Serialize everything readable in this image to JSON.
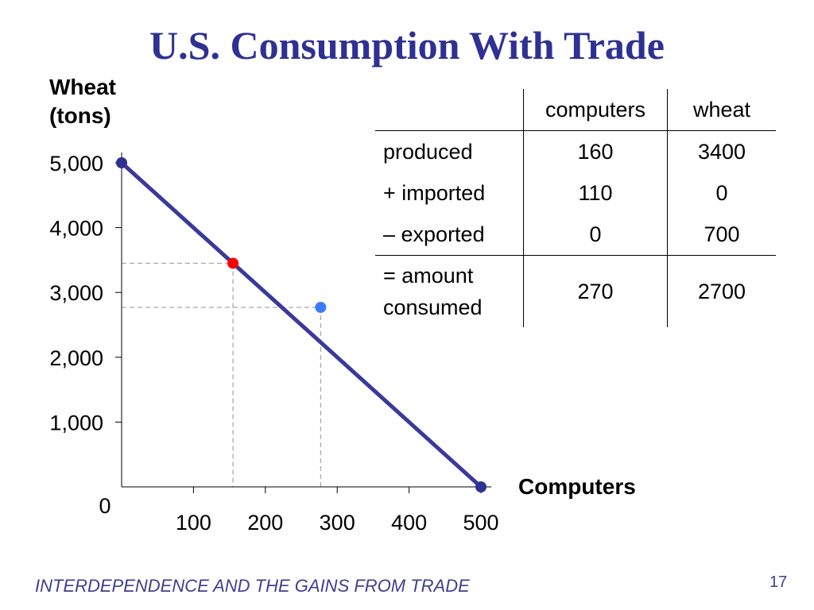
{
  "slide": {
    "title": "U.S. Consumption With Trade",
    "footer": "INTERDEPENDENCE AND THE GAINS FROM TRADE",
    "page_number": "17"
  },
  "table": {
    "headers": [
      "",
      "computers",
      "wheat"
    ],
    "rows": [
      {
        "label": "produced",
        "computers": "160",
        "wheat": "3400"
      },
      {
        "label": "+ imported",
        "computers": "110",
        "wheat": "0"
      },
      {
        "label": "– exported",
        "computers": "0",
        "wheat": "700"
      },
      {
        "label": "= amount consumed",
        "computers": "270",
        "wheat": "2700"
      }
    ]
  },
  "chart_data": {
    "type": "line",
    "ylabel_line1": "Wheat",
    "ylabel_line2": "(tons)",
    "xlabel": "Computers",
    "origin_label": "0",
    "xlim": [
      0,
      500
    ],
    "ylim": [
      0,
      5000
    ],
    "x_ticks": [
      100,
      200,
      300,
      400,
      500
    ],
    "x_tick_labels": [
      "100",
      "200",
      "300",
      "400",
      "500"
    ],
    "y_ticks": [
      1000,
      2000,
      3000,
      4000,
      5000
    ],
    "y_tick_labels": [
      "1,000",
      "2,000",
      "3,000",
      "4,000",
      "5,000"
    ],
    "line": {
      "points": [
        [
          0,
          5000
        ],
        [
          500,
          0
        ]
      ],
      "color": "#3a3a9a"
    },
    "points": [
      {
        "x": 0,
        "y": 5000,
        "color": "#2e3192"
      },
      {
        "x": 500,
        "y": 0,
        "color": "#2e3192"
      },
      {
        "x": 155,
        "y": 3450,
        "color": "#ff0000"
      },
      {
        "x": 277,
        "y": 2770,
        "color": "#3b7bff"
      }
    ],
    "guides": [
      {
        "x": 155,
        "y": 3450
      },
      {
        "x": 277,
        "y": 2770
      }
    ],
    "grid": false
  }
}
